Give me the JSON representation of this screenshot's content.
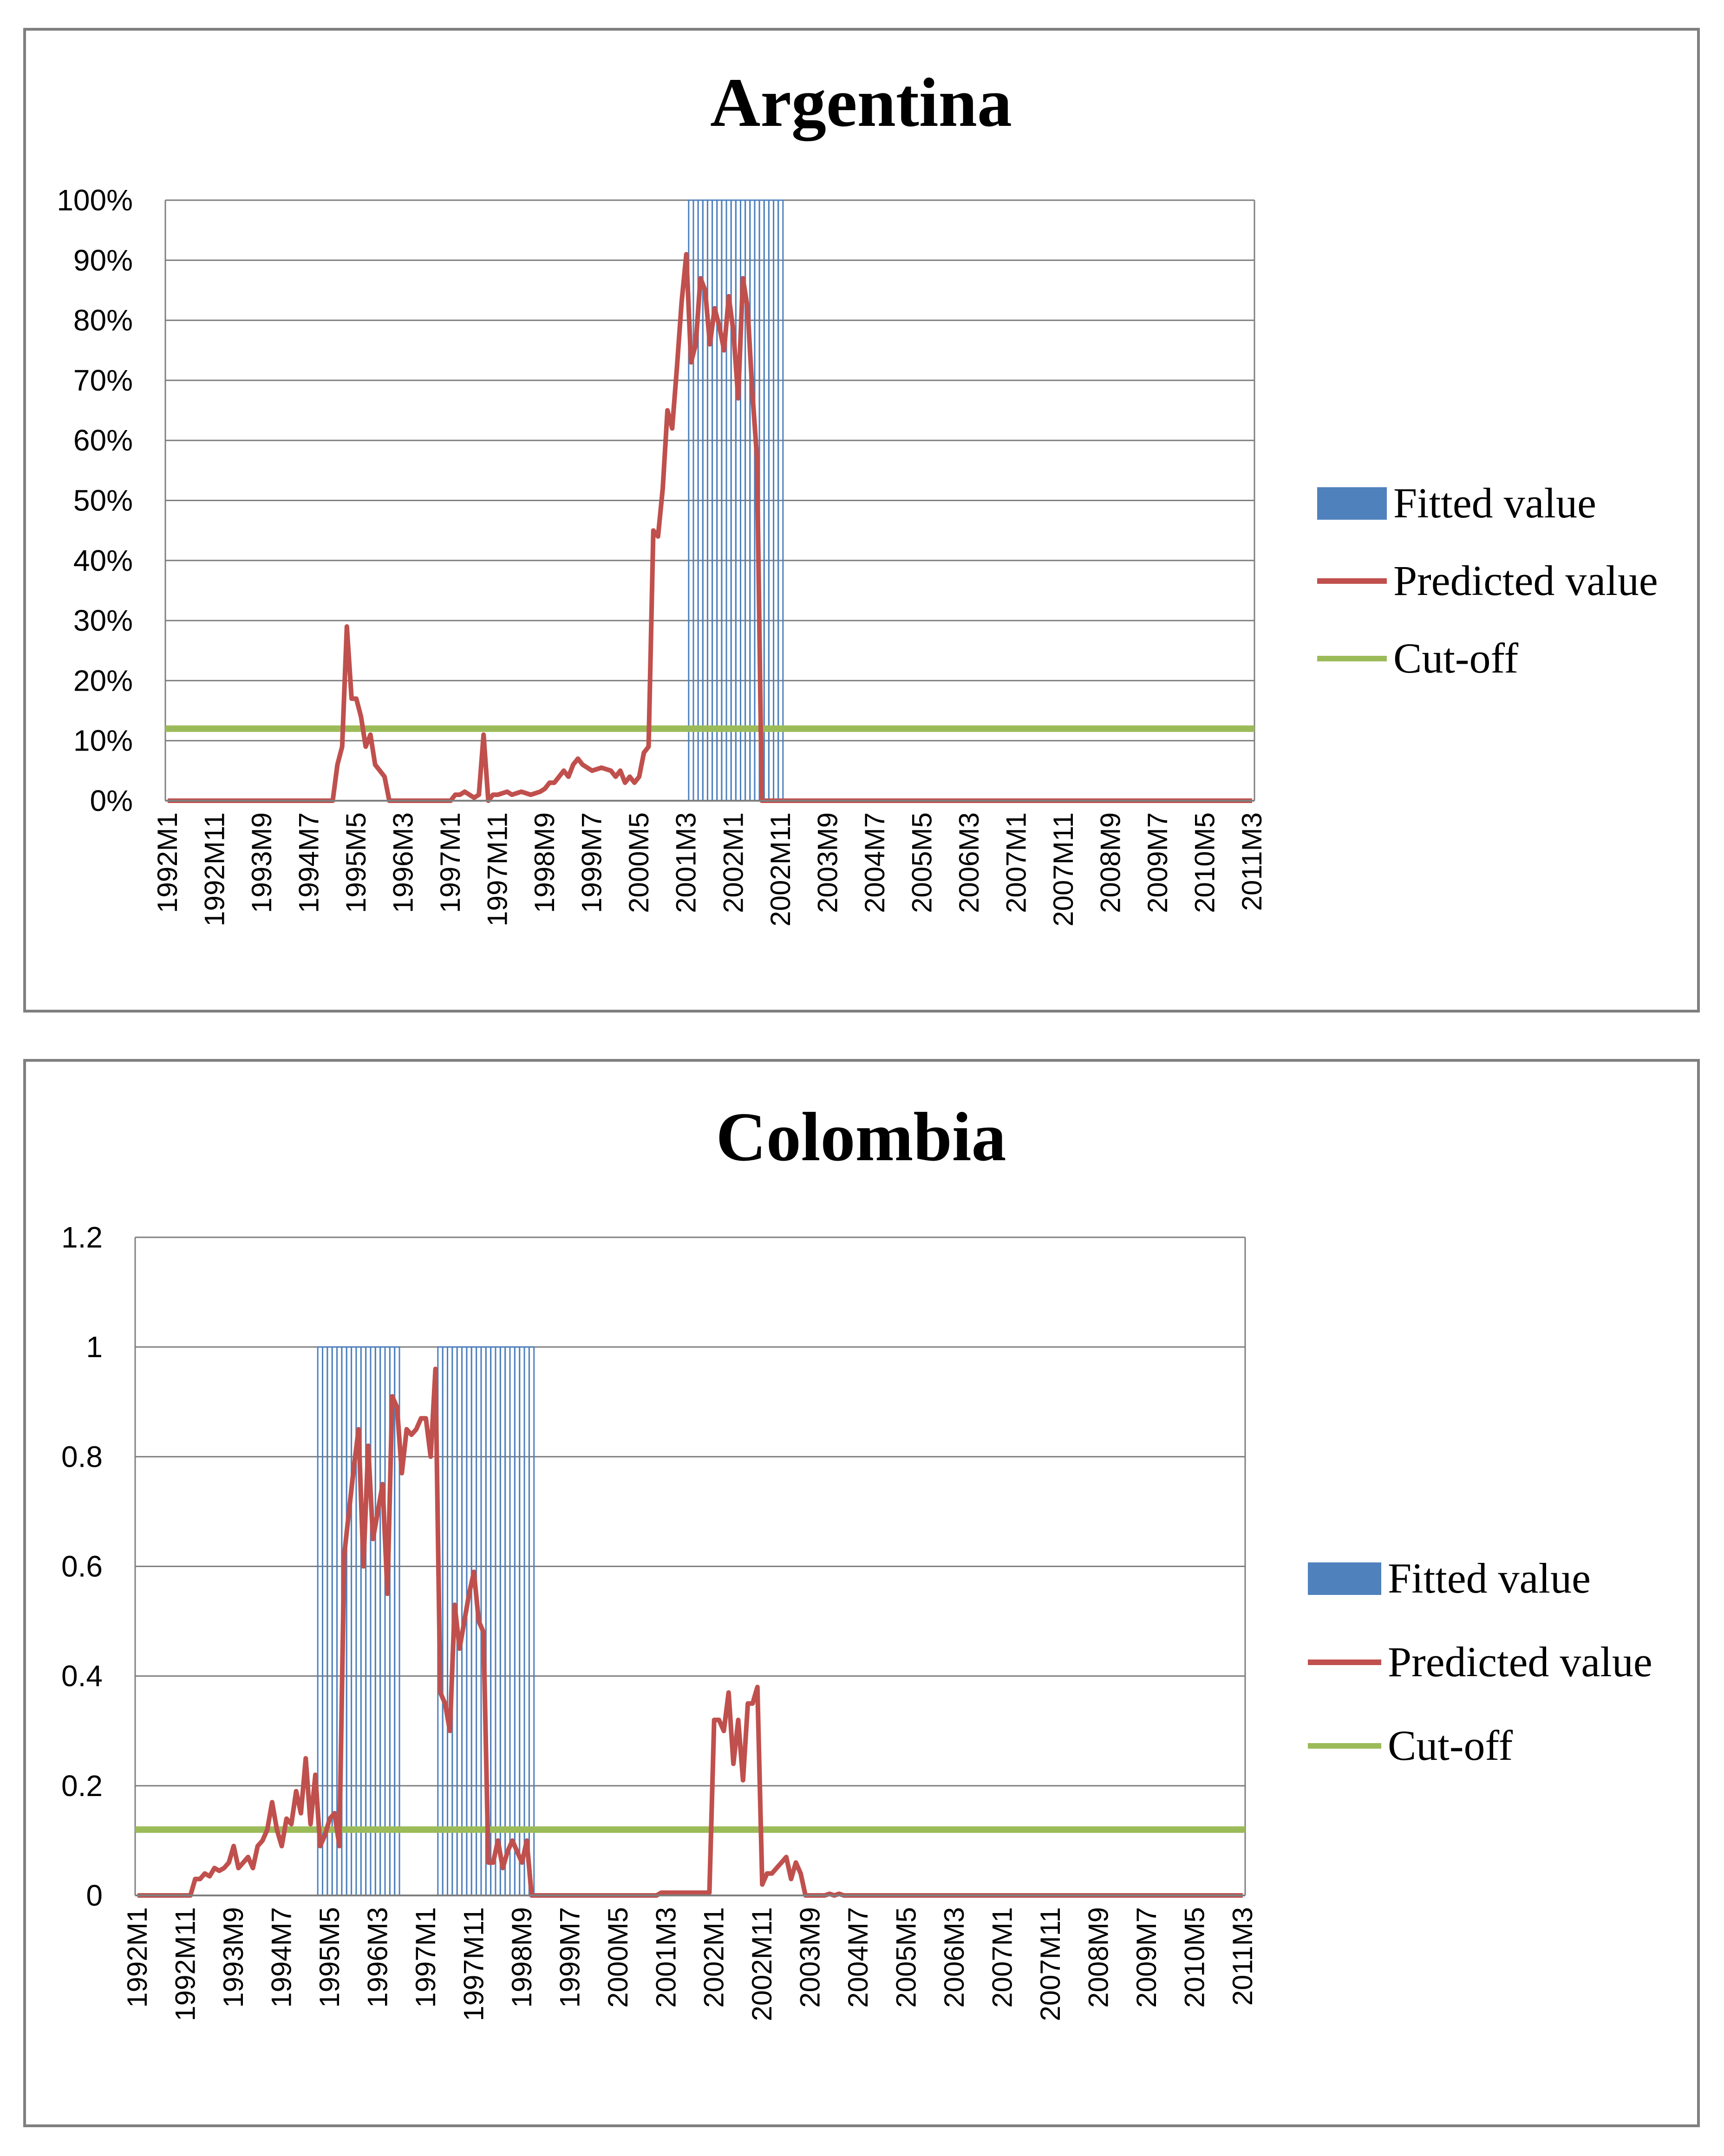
{
  "colors": {
    "fitted": "#4f81bd",
    "predicted": "#c0504d",
    "cutoff": "#9bbb59",
    "grid": "#7f7f7f"
  },
  "legend": {
    "fitted": "Fitted value",
    "predicted": "Predicted value",
    "cutoff": "Cut-off"
  },
  "x_tick_labels": [
    "1992M1",
    "1992M11",
    "1993M9",
    "1994M7",
    "1995M5",
    "1996M3",
    "1997M1",
    "1997M11",
    "1998M9",
    "1999M7",
    "2000M5",
    "2001M3",
    "2002M1",
    "2002M11",
    "2003M9",
    "2004M7",
    "2005M5",
    "2006M3",
    "2007M1",
    "2007M11",
    "2008M9",
    "2009M7",
    "2010M5",
    "2011M3"
  ],
  "chart_data": [
    {
      "type": "bar+line",
      "title": "Argentina",
      "x_months": 231,
      "x_start": "1992M1",
      "x_tick_every": 10,
      "ylim": [
        0,
        1
      ],
      "yticks": [
        0,
        0.1,
        0.2,
        0.3,
        0.4,
        0.5,
        0.6,
        0.7,
        0.8,
        0.9,
        1.0
      ],
      "ytick_labels": [
        "0%",
        "10%",
        "20%",
        "30%",
        "40%",
        "50%",
        "60%",
        "70%",
        "80%",
        "90%",
        "100%"
      ],
      "cutoff": 0.12,
      "fitted_ranges": [
        [
          111,
          130
        ]
      ],
      "predicted_knots": [
        [
          0,
          0
        ],
        [
          35,
          0
        ],
        [
          36,
          0.06
        ],
        [
          37,
          0.09
        ],
        [
          38,
          0.29
        ],
        [
          39,
          0.17
        ],
        [
          40,
          0.17
        ],
        [
          41,
          0.14
        ],
        [
          42,
          0.09
        ],
        [
          43,
          0.11
        ],
        [
          44,
          0.06
        ],
        [
          45,
          0.05
        ],
        [
          46,
          0.04
        ],
        [
          47,
          0
        ],
        [
          60,
          0
        ],
        [
          61,
          0.01
        ],
        [
          62,
          0.01
        ],
        [
          63,
          0.015
        ],
        [
          64,
          0.01
        ],
        [
          65,
          0.005
        ],
        [
          66,
          0.01
        ],
        [
          67,
          0.11
        ],
        [
          68,
          0.0
        ],
        [
          69,
          0.01
        ],
        [
          70,
          0.01
        ],
        [
          72,
          0.015
        ],
        [
          73,
          0.01
        ],
        [
          75,
          0.015
        ],
        [
          77,
          0.01
        ],
        [
          79,
          0.015
        ],
        [
          80,
          0.02
        ],
        [
          81,
          0.03
        ],
        [
          82,
          0.03
        ],
        [
          83,
          0.04
        ],
        [
          84,
          0.05
        ],
        [
          85,
          0.04
        ],
        [
          86,
          0.06
        ],
        [
          87,
          0.07
        ],
        [
          88,
          0.06
        ],
        [
          90,
          0.05
        ],
        [
          92,
          0.055
        ],
        [
          94,
          0.05
        ],
        [
          95,
          0.04
        ],
        [
          96,
          0.05
        ],
        [
          97,
          0.03
        ],
        [
          98,
          0.04
        ],
        [
          99,
          0.03
        ],
        [
          100,
          0.04
        ],
        [
          101,
          0.08
        ],
        [
          102,
          0.09
        ],
        [
          103,
          0.45
        ],
        [
          104,
          0.44
        ],
        [
          105,
          0.52
        ],
        [
          106,
          0.65
        ],
        [
          107,
          0.62
        ],
        [
          108,
          0.72
        ],
        [
          109,
          0.83
        ],
        [
          110,
          0.91
        ],
        [
          111,
          0.73
        ],
        [
          112,
          0.76
        ],
        [
          113,
          0.87
        ],
        [
          114,
          0.85
        ],
        [
          115,
          0.76
        ],
        [
          116,
          0.82
        ],
        [
          117,
          0.79
        ],
        [
          118,
          0.75
        ],
        [
          119,
          0.84
        ],
        [
          120,
          0.78
        ],
        [
          121,
          0.67
        ],
        [
          122,
          0.87
        ],
        [
          123,
          0.82
        ],
        [
          124,
          0.68
        ],
        [
          125,
          0.57
        ],
        [
          126,
          0
        ],
        [
          230,
          0
        ]
      ]
    },
    {
      "type": "bar+line",
      "title": "Colombia",
      "x_months": 231,
      "x_start": "1992M1",
      "x_tick_every": 10,
      "ylim": [
        0,
        1.2
      ],
      "yticks": [
        0,
        0.2,
        0.4,
        0.6,
        0.8,
        1.0,
        1.2
      ],
      "ytick_labels": [
        "0",
        "0.2",
        "0.4",
        "0.6",
        "0.8",
        "1",
        "1.2"
      ],
      "cutoff": 0.12,
      "fitted_ranges": [
        [
          38,
          54
        ],
        [
          63,
          82
        ]
      ],
      "predicted_knots": [
        [
          0,
          0
        ],
        [
          11,
          0
        ],
        [
          12,
          0.03
        ],
        [
          13,
          0.03
        ],
        [
          14,
          0.04
        ],
        [
          15,
          0.035
        ],
        [
          16,
          0.05
        ],
        [
          17,
          0.045
        ],
        [
          18,
          0.05
        ],
        [
          19,
          0.06
        ],
        [
          20,
          0.09
        ],
        [
          21,
          0.05
        ],
        [
          22,
          0.06
        ],
        [
          23,
          0.07
        ],
        [
          24,
          0.05
        ],
        [
          25,
          0.09
        ],
        [
          26,
          0.1
        ],
        [
          27,
          0.12
        ],
        [
          28,
          0.17
        ],
        [
          29,
          0.12
        ],
        [
          30,
          0.09
        ],
        [
          31,
          0.14
        ],
        [
          32,
          0.13
        ],
        [
          33,
          0.19
        ],
        [
          34,
          0.15
        ],
        [
          35,
          0.25
        ],
        [
          36,
          0.13
        ],
        [
          37,
          0.22
        ],
        [
          38,
          0.09
        ],
        [
          39,
          0.11
        ],
        [
          40,
          0.14
        ],
        [
          41,
          0.15
        ],
        [
          42,
          0.09
        ],
        [
          43,
          0.62
        ],
        [
          44,
          0.7
        ],
        [
          45,
          0.78
        ],
        [
          46,
          0.85
        ],
        [
          47,
          0.6
        ],
        [
          48,
          0.82
        ],
        [
          49,
          0.65
        ],
        [
          50,
          0.7
        ],
        [
          51,
          0.75
        ],
        [
          52,
          0.55
        ],
        [
          53,
          0.91
        ],
        [
          54,
          0.89
        ],
        [
          55,
          0.77
        ],
        [
          56,
          0.85
        ],
        [
          57,
          0.84
        ],
        [
          58,
          0.85
        ],
        [
          59,
          0.87
        ],
        [
          60,
          0.87
        ],
        [
          61,
          0.8
        ],
        [
          62,
          0.96
        ],
        [
          63,
          0.37
        ],
        [
          64,
          0.35
        ],
        [
          65,
          0.3
        ],
        [
          66,
          0.53
        ],
        [
          67,
          0.45
        ],
        [
          68,
          0.5
        ],
        [
          69,
          0.55
        ],
        [
          70,
          0.59
        ],
        [
          71,
          0.5
        ],
        [
          72,
          0.48
        ],
        [
          73,
          0.06
        ],
        [
          74,
          0.06
        ],
        [
          75,
          0.1
        ],
        [
          76,
          0.05
        ],
        [
          77,
          0.08
        ],
        [
          78,
          0.1
        ],
        [
          79,
          0.08
        ],
        [
          80,
          0.06
        ],
        [
          81,
          0.1
        ],
        [
          82,
          0
        ],
        [
          108,
          0
        ],
        [
          109,
          0.005
        ],
        [
          119,
          0.005
        ],
        [
          120,
          0.32
        ],
        [
          121,
          0.32
        ],
        [
          122,
          0.3
        ],
        [
          123,
          0.37
        ],
        [
          124,
          0.24
        ],
        [
          125,
          0.32
        ],
        [
          126,
          0.21
        ],
        [
          127,
          0.35
        ],
        [
          128,
          0.35
        ],
        [
          129,
          0.38
        ],
        [
          130,
          0.02
        ],
        [
          131,
          0.04
        ],
        [
          132,
          0.04
        ],
        [
          133,
          0.05
        ],
        [
          134,
          0.06
        ],
        [
          135,
          0.07
        ],
        [
          136,
          0.03
        ],
        [
          137,
          0.06
        ],
        [
          138,
          0.04
        ],
        [
          139,
          0
        ],
        [
          143,
          0
        ],
        [
          144,
          0.003
        ],
        [
          145,
          0
        ],
        [
          146,
          0.003
        ],
        [
          147,
          0
        ],
        [
          230,
          0
        ]
      ]
    }
  ]
}
